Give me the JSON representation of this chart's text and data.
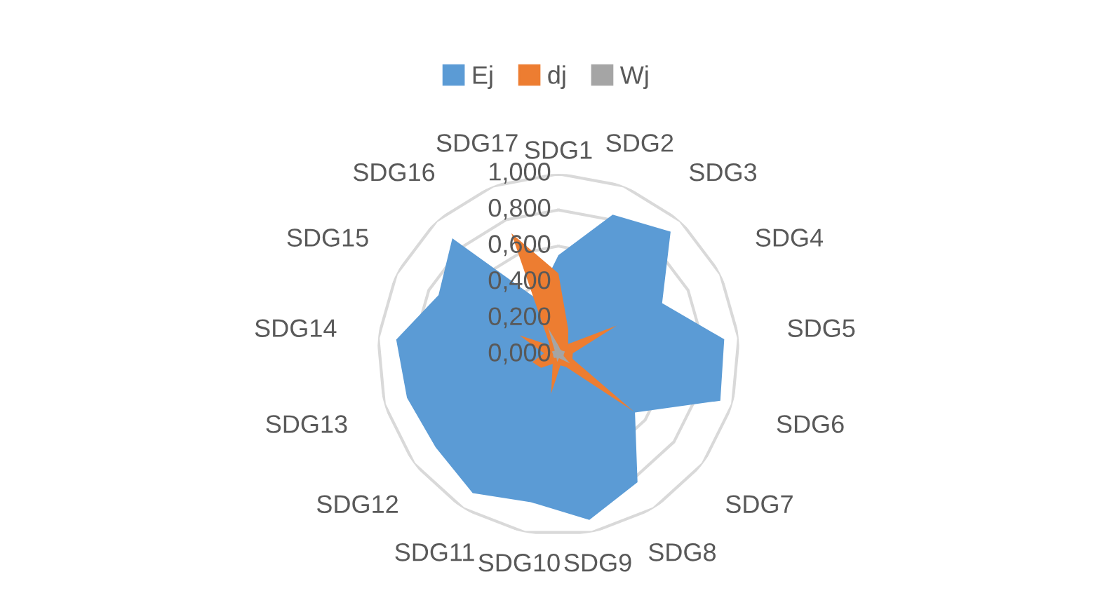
{
  "chart_data": {
    "type": "radar",
    "categories": [
      "SDG1",
      "SDG2",
      "SDG3",
      "SDG4",
      "SDG5",
      "SDG6",
      "SDG7",
      "SDG8",
      "SDG9",
      "SDG10",
      "SDG11",
      "SDG12",
      "SDG13",
      "SDG14",
      "SDG15",
      "SDG16",
      "SDG17"
    ],
    "series": [
      {
        "name": "Ej",
        "color": "#5b9bd5",
        "values": [
          0.55,
          0.83,
          0.92,
          0.64,
          0.92,
          0.93,
          0.53,
          0.83,
          0.93,
          0.83,
          0.9,
          0.85,
          0.87,
          0.9,
          0.74,
          0.87,
          0.33
        ]
      },
      {
        "name": "dj",
        "color": "#ed7d31",
        "values": [
          0.45,
          0.15,
          0.08,
          0.36,
          0.08,
          0.08,
          0.52,
          0.08,
          0.06,
          0.22,
          0.06,
          0.12,
          0.15,
          0.08,
          0.24,
          0.07,
          0.72
        ]
      },
      {
        "name": "Wj",
        "color": "#a5a5a5",
        "values": [
          0.05,
          0.03,
          0.03,
          0.04,
          0.03,
          0.03,
          0.08,
          0.03,
          0.02,
          0.04,
          0.02,
          0.03,
          0.03,
          0.03,
          0.04,
          0.03,
          0.16
        ]
      }
    ],
    "ylim": [
      0,
      1
    ],
    "yticks": [
      {
        "value": 0,
        "label": "0,000"
      },
      {
        "value": 0.2,
        "label": "0,200"
      },
      {
        "value": 0.4,
        "label": "0,400"
      },
      {
        "value": 0.6,
        "label": "0,600"
      },
      {
        "value": 0.8,
        "label": "0,800"
      },
      {
        "value": 1,
        "label": "1,000"
      }
    ],
    "legend": "top",
    "grid": true
  }
}
